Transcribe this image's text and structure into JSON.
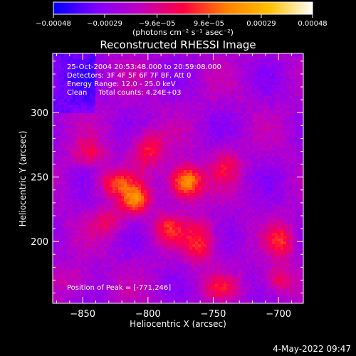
{
  "chart_data": {
    "type": "heatmap",
    "title": "Reconstructed RHESSI Image",
    "xlabel": "Heliocentric X (arcsec)",
    "ylabel": "Heliocentric Y (arcsec)",
    "xlim": [
      -873,
      -681
    ],
    "ylim": [
      152,
      346
    ],
    "x_ticks": [
      -850,
      -800,
      -750,
      -700
    ],
    "y_ticks": [
      200,
      250,
      300
    ],
    "x_tick_labels": [
      "−850",
      "−800",
      "−750",
      "−700"
    ],
    "y_tick_labels": [
      "200",
      "250",
      "300"
    ],
    "colorbar": {
      "range": [
        -0.00048,
        0.00048
      ],
      "ticks": [
        -0.00048,
        -0.00029,
        -9.6e-05,
        9.6e-05,
        0.00029,
        0.00048
      ],
      "tick_labels": [
        "−0.00048",
        "−0.00029",
        "−9.6e−05",
        "9.6e−05",
        "0.00029",
        "0.00048"
      ],
      "unit_label": "(photons cm⁻² s⁻¹ asec⁻²)",
      "stops": [
        "#0000ff",
        "#8000ff",
        "#c000c0",
        "#ff0040",
        "#ff8000",
        "#ffc000",
        "#ffffff"
      ]
    },
    "annotations": [
      "25-Oct-2004 20:53:48.000 to 20:59:08.000",
      "Detectors: 3F 4F 5F 6F 7F 8F, Att 0",
      "Energy Range: 12.0 - 25.0 keV",
      "Clean     Total counts: 4.24E+03"
    ],
    "peak_label": "Position of Peak = [-771,246]",
    "peak_position": [
      -771,
      246
    ],
    "sources": [
      {
        "x": -771,
        "y": 246,
        "sx": 9,
        "sy": 9,
        "amp": 0.00048
      },
      {
        "x": -810,
        "y": 232,
        "sx": 8,
        "sy": 8,
        "amp": 0.00036
      },
      {
        "x": -825,
        "y": 245,
        "sx": 10,
        "sy": 7,
        "amp": 0.00026
      },
      {
        "x": -800,
        "y": 272,
        "sx": 9,
        "sy": 10,
        "amp": 0.00024
      },
      {
        "x": -845,
        "y": 268,
        "sx": 9,
        "sy": 7,
        "amp": 0.00018
      },
      {
        "x": -760,
        "y": 200,
        "sx": 9,
        "sy": 12,
        "amp": 0.00026
      },
      {
        "x": -785,
        "y": 210,
        "sx": 8,
        "sy": 8,
        "amp": 0.00022
      },
      {
        "x": -740,
        "y": 260,
        "sx": 8,
        "sy": 10,
        "amp": 0.00018
      },
      {
        "x": -698,
        "y": 200,
        "sx": 7,
        "sy": 9,
        "amp": 0.00024
      },
      {
        "x": -700,
        "y": 170,
        "sx": 8,
        "sy": 8,
        "amp": 0.00022
      },
      {
        "x": -745,
        "y": 165,
        "sx": 10,
        "sy": 6,
        "amp": 0.00016
      },
      {
        "x": -830,
        "y": 215,
        "sx": 9,
        "sy": 8,
        "amp": 0.00016
      },
      {
        "x": -855,
        "y": 170,
        "sx": 10,
        "sy": 8,
        "amp": 0.00012
      }
    ]
  },
  "timestamp": "4-May-2022 09:47"
}
